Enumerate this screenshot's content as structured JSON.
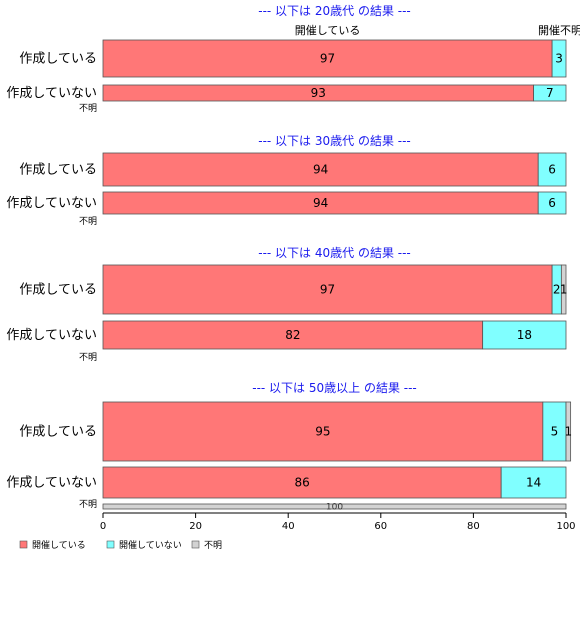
{
  "chart_data": {
    "type": "bar",
    "orientation": "horizontal",
    "stacked": true,
    "xlim": [
      0,
      100
    ],
    "x_ticks": [
      0,
      20,
      40,
      60,
      80,
      100
    ],
    "legend_placement": "bottom-left",
    "colors": {
      "開催している": "#ff7777",
      "開催していない": "#80ffff",
      "不明": "#d3d3d3"
    },
    "series_names": [
      "開催している",
      "開催していない",
      "不明"
    ],
    "column_header": "開催している",
    "column_header_overlap": "開催不明",
    "panels": [
      {
        "title": "--- 以下は 20歳代 の結果 ---",
        "rows": [
          {
            "category": "作成している",
            "values": [
              97,
              3,
              0
            ],
            "labels": [
              "97",
              "3",
              ""
            ]
          },
          {
            "category": "作成していない",
            "values": [
              93,
              7,
              0
            ],
            "labels": [
              "93",
              "7",
              ""
            ]
          },
          {
            "category": "不明",
            "values": [
              0,
              0,
              0
            ],
            "labels": [
              "",
              "",
              ""
            ]
          }
        ]
      },
      {
        "title": "--- 以下は 30歳代 の結果 ---",
        "rows": [
          {
            "category": "作成している",
            "values": [
              94,
              6,
              0
            ],
            "labels": [
              "94",
              "6",
              ""
            ]
          },
          {
            "category": "作成していない",
            "values": [
              94,
              6,
              0
            ],
            "labels": [
              "94",
              "6",
              ""
            ]
          },
          {
            "category": "不明",
            "values": [
              0,
              0,
              0
            ],
            "labels": [
              "",
              "",
              ""
            ]
          }
        ]
      },
      {
        "title": "--- 以下は 40歳代 の結果 ---",
        "rows": [
          {
            "category": "作成している",
            "values": [
              97,
              2,
              1
            ],
            "labels": [
              "97",
              "2",
              "1"
            ]
          },
          {
            "category": "作成していない",
            "values": [
              82,
              18,
              0
            ],
            "labels": [
              "82",
              "18",
              ""
            ]
          },
          {
            "category": "不明",
            "values": [
              0,
              0,
              0
            ],
            "labels": [
              "",
              "",
              ""
            ]
          }
        ]
      },
      {
        "title": "--- 以下は 50歳以上 の結果 ---",
        "rows": [
          {
            "category": "作成している",
            "values": [
              95,
              5,
              1
            ],
            "labels": [
              "95",
              "5",
              "1"
            ]
          },
          {
            "category": "作成していない",
            "values": [
              86,
              14,
              0
            ],
            "labels": [
              "86",
              "14",
              ""
            ]
          },
          {
            "category": "不明",
            "values": [
              0,
              0,
              100
            ],
            "labels": [
              "",
              "",
              "100"
            ]
          }
        ]
      }
    ]
  }
}
